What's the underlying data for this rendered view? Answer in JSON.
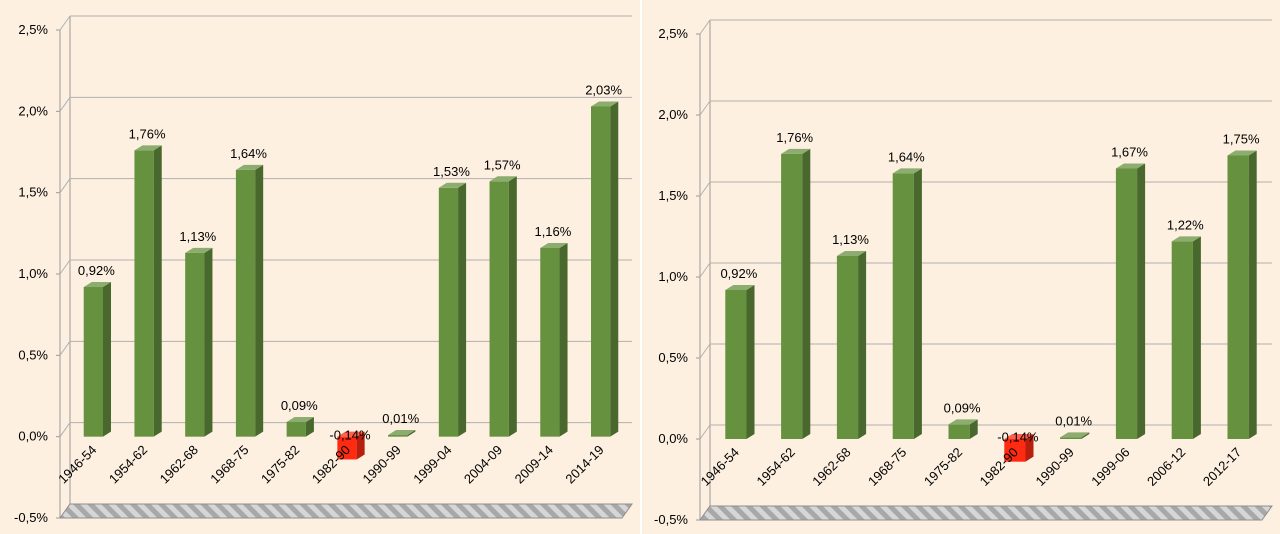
{
  "chart_data": [
    {
      "type": "bar",
      "categories": [
        "1946-54",
        "1954-62",
        "1962-68",
        "1968-75",
        "1975-82",
        "1982-90",
        "1990-99",
        "1999-04",
        "2004-09",
        "2009-14",
        "2014-19"
      ],
      "values": [
        0.92,
        1.76,
        1.13,
        1.64,
        0.09,
        -0.14,
        0.01,
        1.53,
        1.57,
        1.16,
        2.03
      ],
      "data_labels": [
        "0,92%",
        "1,76%",
        "1,13%",
        "1,64%",
        "0,09%",
        "-0,14%",
        "0,01%",
        "1,53%",
        "1,57%",
        "1,16%",
        "2,03%"
      ],
      "ylim": [
        -0.5,
        2.5
      ],
      "yticks": [
        "-0,5%",
        "0,0%",
        "0,5%",
        "1,0%",
        "1,5%",
        "2,0%",
        "2,5%"
      ],
      "grid": true,
      "colors": {
        "positive": "#66913f",
        "negative": "#ff2a12",
        "plot_bg": "#fdf0e0",
        "floor": "#c9c9c9"
      }
    },
    {
      "type": "bar",
      "categories": [
        "1946-54",
        "1954-62",
        "1962-68",
        "1968-75",
        "1975-82",
        "1982-90",
        "1990-99",
        "1999-06",
        "2006-12",
        "2012-17"
      ],
      "values": [
        0.92,
        1.76,
        1.13,
        1.64,
        0.09,
        -0.14,
        0.01,
        1.67,
        1.22,
        1.75
      ],
      "data_labels": [
        "0,92%",
        "1,76%",
        "1,13%",
        "1,64%",
        "0,09%",
        "-0,14%",
        "0,01%",
        "1,67%",
        "1,22%",
        "1,75%"
      ],
      "ylim": [
        -0.5,
        2.5
      ],
      "yticks": [
        "-0,5%",
        "0,0%",
        "0,5%",
        "1,0%",
        "1,5%",
        "2,0%",
        "2,5%"
      ],
      "grid": true,
      "colors": {
        "positive": "#66913f",
        "negative": "#ff2a12",
        "plot_bg": "#fdf0e0",
        "floor": "#c9c9c9"
      }
    }
  ]
}
